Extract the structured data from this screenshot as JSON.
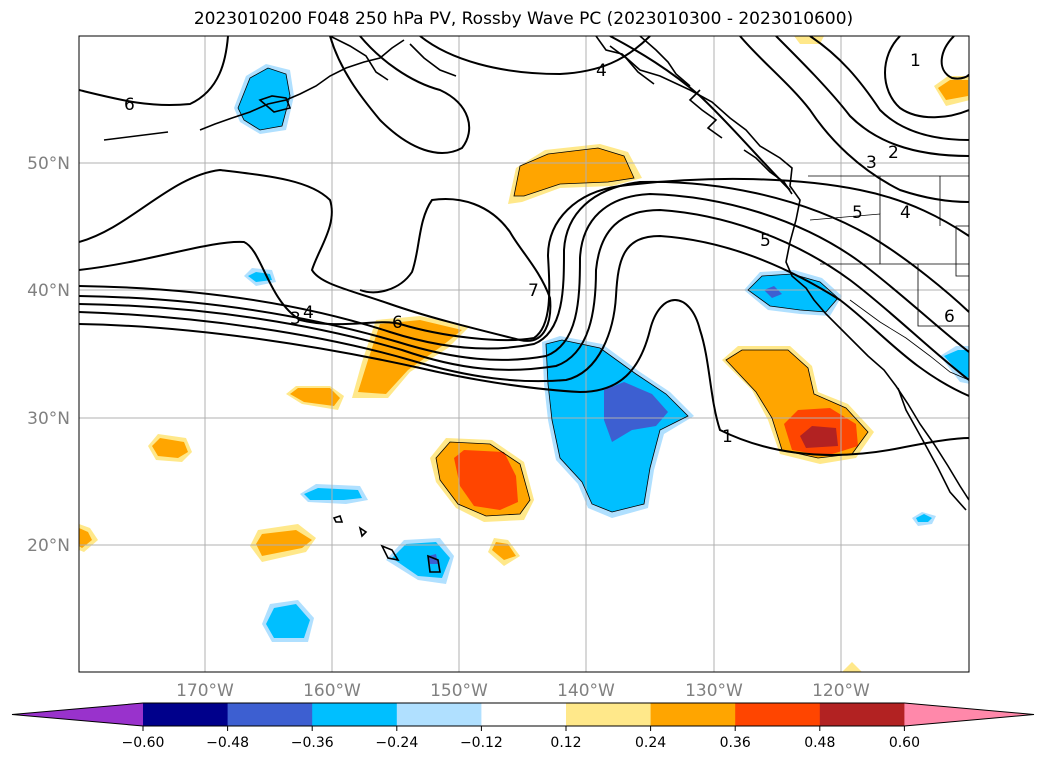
{
  "title": "2023010200 F048 250 hPa PV, Rossby Wave PC (2023010300 - 2023010600)",
  "lat_labels": [
    "50°N",
    "40°N",
    "30°N",
    "20°N"
  ],
  "lon_labels": [
    "170°W",
    "160°W",
    "150°W",
    "140°W",
    "130°W",
    "120°W"
  ],
  "contour_labels": [
    "6",
    "4",
    "3",
    "2",
    "1",
    "5",
    "4",
    "5",
    "6",
    "7",
    "6",
    "3",
    "4",
    "1"
  ],
  "colorbar": {
    "tick_labels": [
      "−0.60",
      "−0.48",
      "−0.36",
      "−0.24",
      "−0.12",
      "0.12",
      "0.24",
      "0.36",
      "0.48",
      "0.60"
    ],
    "colors": [
      "#9932cc",
      "#00008b",
      "#3d5fd1",
      "#00bfff",
      "#b0e0ff",
      "#ffffff",
      "#ffe88a",
      "#ffa500",
      "#ff4500",
      "#b22222",
      "#ff88aa"
    ]
  }
}
